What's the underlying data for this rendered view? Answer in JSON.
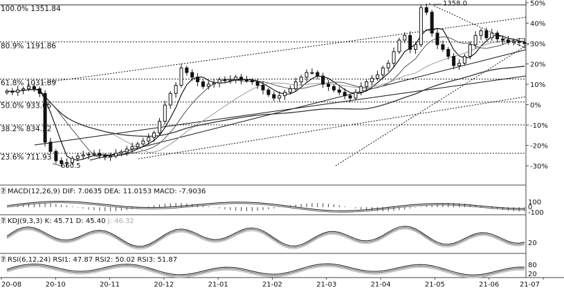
{
  "chart_data": {
    "type": "line",
    "main": {
      "y_axis_pct": [
        "50%",
        "40%",
        "30%",
        "20%",
        "10%",
        "0%",
        "-10%",
        "-20%",
        "-30%"
      ],
      "ylim_pct": [
        -33,
        50
      ],
      "fib_levels": [
        {
          "label": "100.0%",
          "value": "1351.84",
          "price": 1351.84
        },
        {
          "label": "80.9%",
          "value": "1191.86",
          "price": 1191.86
        },
        {
          "label": "61.8%",
          "value": "1031.89",
          "price": 1031.89
        },
        {
          "label": "50.0%",
          "value": "933.05",
          "price": 933.05
        },
        {
          "label": "38.2%",
          "value": "834.22",
          "price": 834.22
        },
        {
          "label": "23.6%",
          "value": "711.93",
          "price": 711.93
        }
      ],
      "annotations": {
        "high": "1358.0",
        "low": "660.5"
      },
      "close_prices": [
        980,
        975,
        985,
        990,
        1000,
        990,
        970,
        760,
        720,
        680,
        668,
        672,
        690,
        700,
        705,
        708,
        712,
        702,
        698,
        700,
        712,
        718,
        730,
        740,
        752,
        765,
        780,
        800,
        850,
        920,
        970,
        1005,
        1080,
        1060,
        1040,
        1020,
        1000,
        1010,
        1015,
        1030,
        1025,
        1030,
        1040,
        1028,
        1025,
        1020,
        1005,
        985,
        965,
        950,
        960,
        975,
        990,
        1020,
        1040,
        1060,
        1060,
        1045,
        1010,
        1000,
        985,
        975,
        960,
        950,
        975,
        1000,
        1020,
        1035,
        1050,
        1080,
        1100,
        1150,
        1200,
        1220,
        1160,
        1180,
        1340,
        1320,
        1230,
        1180,
        1160,
        1130,
        1090,
        1100,
        1130,
        1180,
        1220,
        1240,
        1210,
        1230,
        1205,
        1200,
        1190,
        1195,
        1190,
        1185
      ]
    },
    "x_axis_labels": [
      "20-08",
      "20-10",
      "20-11",
      "20-12",
      "21-01",
      "21-02",
      "21-03",
      "21-04",
      "21-05",
      "21-06",
      "21-07"
    ],
    "macd": {
      "label": "MACD(12,26,9)",
      "dif": "DIF: 7.0635",
      "dea": "DEA: 11.0153",
      "macd": "MACD: -7.9036",
      "ticks": [
        "100",
        "0",
        "-100"
      ]
    },
    "kdj": {
      "label": "KDJ(9,3,3)",
      "k": "K: 45.71",
      "d": "D: 45.40",
      "j": "J: 46.32",
      "ticks": [
        "20"
      ]
    },
    "rsi": {
      "label": "RSI(6,12,24)",
      "rsi1": "RSI1: 47.87",
      "rsi2": "RSI2: 50.02",
      "rsi3": "RSI3: 51.87",
      "ticks": [
        "80",
        "20"
      ]
    }
  },
  "panel_glyph": "?"
}
